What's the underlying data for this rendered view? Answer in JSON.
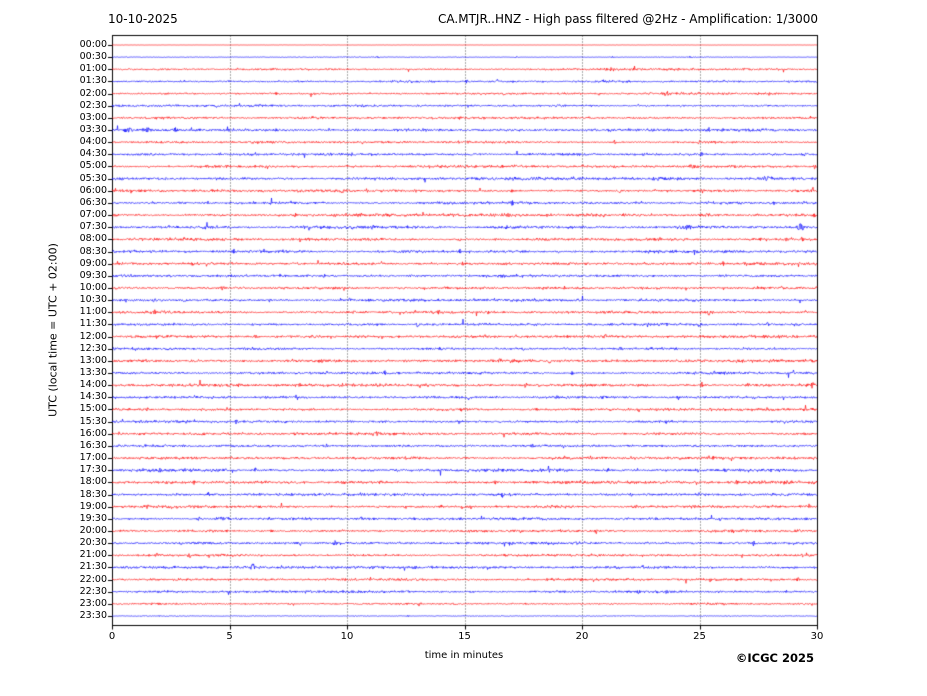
{
  "chart_data": {
    "type": "line",
    "subtype": "seismogram-helicorder",
    "title_left": "10-10-2025",
    "title_right": "CA.MTJR..HNZ - High pass filtered @2Hz - Amplification: 1/3000",
    "xlabel": "time in minutes",
    "ylabel": "UTC (local time = UTC + 02:00)",
    "credit": "©ICGC 2025",
    "xlim": [
      0,
      30
    ],
    "x_ticks": [
      0,
      5,
      10,
      15,
      20,
      25,
      30
    ],
    "grid_minutes": [
      5,
      10,
      15,
      20,
      25
    ],
    "grid_style": "dotted-vertical",
    "minutes_per_row": 30,
    "legend": "none",
    "colors": {
      "red": "#ff0000",
      "blue": "#0000ff",
      "axis": "#000000",
      "grid": "#555555"
    },
    "noise_seed": 20251010,
    "rows": [
      {
        "time": "00:00",
        "color": "red",
        "amp": 0.1,
        "spikes": []
      },
      {
        "time": "00:30",
        "color": "blue",
        "amp": 0.28,
        "spikes": [
          [
            11.3,
            1.2
          ],
          [
            17.2,
            0.9
          ],
          [
            21.3,
            1.0
          ],
          [
            24.6,
            1.0
          ]
        ]
      },
      {
        "time": "01:00",
        "color": "red",
        "amp": 0.75,
        "spikes": [
          [
            7.0,
            1.3
          ],
          [
            21.0,
            1.2
          ]
        ]
      },
      {
        "time": "01:30",
        "color": "blue",
        "amp": 0.85,
        "spikes": [
          [
            15.1,
            1.4
          ],
          [
            16.4,
            1.8
          ],
          [
            20.9,
            1.4
          ],
          [
            28.8,
            1.2
          ]
        ]
      },
      {
        "time": "02:00",
        "color": "red",
        "amp": 0.75,
        "spikes": [
          [
            7.0,
            1.8
          ],
          [
            16.7,
            1.4
          ],
          [
            23.6,
            1.6,
            0.25
          ]
        ]
      },
      {
        "time": "02:30",
        "color": "blue",
        "amp": 0.8,
        "spikes": [
          [
            22.4,
            1.5
          ],
          [
            24.2,
            1.6
          ]
        ]
      },
      {
        "time": "03:00",
        "color": "red",
        "amp": 0.85,
        "spikes": [
          [
            14.8,
            1.4
          ],
          [
            20.3,
            1.6
          ]
        ]
      },
      {
        "time": "03:30",
        "color": "blue",
        "amp": 0.95,
        "spikes": [
          [
            0.7,
            2.4,
            0.2
          ],
          [
            1.5,
            2.0,
            0.3
          ],
          [
            2.7,
            2.6
          ],
          [
            7.0,
            2.2
          ],
          [
            10.4,
            1.4
          ]
        ]
      },
      {
        "time": "04:00",
        "color": "red",
        "amp": 0.85,
        "spikes": [
          [
            3.0,
            1.4
          ],
          [
            21.4,
            2.2
          ],
          [
            25.0,
            1.4
          ]
        ]
      },
      {
        "time": "04:30",
        "color": "blue",
        "amp": 0.9,
        "spikes": [
          [
            1.7,
            1.6
          ],
          [
            4.6,
            1.4
          ],
          [
            10.2,
            2.4
          ],
          [
            17.8,
            1.3
          ],
          [
            25.1,
            2.6
          ]
        ]
      },
      {
        "time": "05:00",
        "color": "red",
        "amp": 1.05,
        "spikes": [
          [
            13.5,
            1.7
          ],
          [
            17.2,
            1.6
          ],
          [
            21.4,
            1.6
          ],
          [
            24.7,
            1.9,
            0.2
          ],
          [
            29.9,
            2.2
          ]
        ]
      },
      {
        "time": "05:30",
        "color": "blue",
        "amp": 1.1,
        "spikes": [
          [
            2.0,
            1.5
          ],
          [
            21.0,
            1.4
          ],
          [
            27.9,
            1.9,
            0.3
          ],
          [
            29.0,
            1.8
          ]
        ]
      },
      {
        "time": "06:00",
        "color": "red",
        "amp": 1.05,
        "spikes": [
          [
            0.8,
            2.3
          ],
          [
            9.8,
            1.9
          ],
          [
            17.0,
            1.5
          ],
          [
            21.6,
            1.6
          ],
          [
            23.1,
            1.5
          ],
          [
            29.8,
            2.8
          ]
        ]
      },
      {
        "time": "06:30",
        "color": "blue",
        "amp": 0.95,
        "spikes": [
          [
            6.5,
            1.4
          ],
          [
            17.0,
            2.2
          ],
          [
            25.6,
            1.5
          ]
        ]
      },
      {
        "time": "07:00",
        "color": "red",
        "amp": 1.0,
        "spikes": [
          [
            7.8,
            2.3
          ],
          [
            9.5,
            1.9
          ],
          [
            16.9,
            1.5
          ],
          [
            25.3,
            1.6,
            0.25
          ],
          [
            29.9,
            1.9
          ]
        ]
      },
      {
        "time": "07:30",
        "color": "blue",
        "amp": 1.05,
        "spikes": [
          [
            11.1,
            2.3
          ],
          [
            16.8,
            1.8
          ],
          [
            24.5,
            1.9,
            0.3
          ],
          [
            29.3,
            4.3,
            0.12
          ]
        ]
      },
      {
        "time": "08:00",
        "color": "red",
        "amp": 1.05,
        "spikes": [
          [
            3.0,
            1.7
          ],
          [
            14.8,
            2.3
          ],
          [
            27.6,
            1.6
          ],
          [
            28.7,
            2.7
          ],
          [
            29.4,
            2.6
          ]
        ]
      },
      {
        "time": "08:30",
        "color": "blue",
        "amp": 1.0,
        "spikes": [
          [
            5.2,
            2.3
          ],
          [
            8.0,
            1.9
          ],
          [
            14.8,
            2.4
          ],
          [
            24.8,
            2.0
          ]
        ]
      },
      {
        "time": "09:00",
        "color": "red",
        "amp": 1.05,
        "spikes": [
          [
            3.4,
            2.1
          ],
          [
            11.5,
            1.9
          ],
          [
            14.9,
            2.3
          ],
          [
            26.0,
            2.3
          ]
        ]
      },
      {
        "time": "09:30",
        "color": "blue",
        "amp": 0.95,
        "spikes": [
          [
            2.5,
            1.6
          ],
          [
            9.0,
            1.7
          ],
          [
            16.6,
            1.9
          ],
          [
            21.5,
            1.5
          ]
        ]
      },
      {
        "time": "10:00",
        "color": "red",
        "amp": 1.0,
        "spikes": [
          [
            4.7,
            2.4
          ],
          [
            13.3,
            1.7
          ],
          [
            22.8,
            1.9
          ],
          [
            28.5,
            1.5
          ]
        ]
      },
      {
        "time": "10:30",
        "color": "blue",
        "amp": 1.0,
        "spikes": [
          [
            0.6,
            1.7
          ],
          [
            1.8,
            1.9
          ],
          [
            3.1,
            1.5
          ],
          [
            6.7,
            1.9
          ],
          [
            10.1,
            2.1
          ],
          [
            28.1,
            1.5
          ]
        ]
      },
      {
        "time": "11:00",
        "color": "red",
        "amp": 1.0,
        "spikes": [
          [
            1.8,
            2.6
          ],
          [
            10.3,
            1.6
          ],
          [
            12.9,
            2.0
          ],
          [
            13.9,
            2.3
          ],
          [
            25.4,
            2.8
          ],
          [
            29.5,
            1.9
          ]
        ]
      },
      {
        "time": "11:30",
        "color": "blue",
        "amp": 1.0,
        "spikes": [
          [
            6.0,
            2.1
          ],
          [
            13.0,
            2.8
          ],
          [
            20.0,
            1.6
          ],
          [
            25.0,
            2.6
          ],
          [
            27.9,
            2.2
          ]
        ]
      },
      {
        "time": "12:00",
        "color": "red",
        "amp": 1.0,
        "spikes": [
          [
            6.1,
            1.9
          ],
          [
            9.3,
            1.9
          ],
          [
            12.2,
            2.3
          ],
          [
            17.2,
            1.7
          ],
          [
            21.0,
            1.9
          ]
        ]
      },
      {
        "time": "12:30",
        "color": "blue",
        "amp": 0.9,
        "spikes": [
          [
            6.0,
            1.7
          ],
          [
            14.0,
            1.7
          ],
          [
            17.5,
            1.5
          ],
          [
            21.6,
            1.4
          ]
        ]
      },
      {
        "time": "13:00",
        "color": "red",
        "amp": 1.1,
        "spikes": [
          [
            12.5,
            2.3
          ],
          [
            16.5,
            2.6
          ],
          [
            18.6,
            1.9
          ],
          [
            21.5,
            1.9
          ],
          [
            26.6,
            1.7
          ],
          [
            29.8,
            2.7
          ]
        ]
      },
      {
        "time": "13:30",
        "color": "blue",
        "amp": 1.0,
        "spikes": [
          [
            9.1,
            1.9
          ],
          [
            11.6,
            2.4
          ],
          [
            19.6,
            2.4
          ],
          [
            25.6,
            2.4
          ],
          [
            29.0,
            1.9
          ]
        ]
      },
      {
        "time": "14:00",
        "color": "red",
        "amp": 1.1,
        "spikes": [
          [
            8.0,
            1.9
          ],
          [
            13.0,
            1.9
          ],
          [
            17.6,
            2.1
          ],
          [
            25.1,
            2.8
          ],
          [
            27.1,
            1.9
          ],
          [
            29.8,
            3.2
          ]
        ]
      },
      {
        "time": "14:30",
        "color": "blue",
        "amp": 0.9,
        "spikes": [
          [
            15.2,
            2.4
          ],
          [
            24.1,
            1.9
          ]
        ]
      },
      {
        "time": "15:00",
        "color": "red",
        "amp": 0.9,
        "spikes": [
          [
            1.5,
            1.7
          ],
          [
            15.1,
            1.9
          ],
          [
            18.1,
            1.4
          ],
          [
            28.1,
            1.4
          ]
        ]
      },
      {
        "time": "15:30",
        "color": "blue",
        "amp": 0.9,
        "spikes": [
          [
            5.3,
            2.1
          ],
          [
            19.8,
            1.5
          ],
          [
            23.6,
            1.4
          ]
        ]
      },
      {
        "time": "16:00",
        "color": "red",
        "amp": 0.9,
        "spikes": [
          [
            0.3,
            1.9
          ],
          [
            11.3,
            1.9
          ],
          [
            24.9,
            2.3
          ]
        ]
      },
      {
        "time": "16:30",
        "color": "blue",
        "amp": 0.85,
        "spikes": [
          [
            9.1,
            1.5
          ],
          [
            17.9,
            2.6
          ],
          [
            23.4,
            1.5
          ]
        ]
      },
      {
        "time": "17:00",
        "color": "red",
        "amp": 0.95,
        "spikes": [
          [
            1.5,
            1.9
          ],
          [
            5.1,
            1.7
          ],
          [
            20.4,
            1.6
          ],
          [
            25.6,
            1.9
          ]
        ]
      },
      {
        "time": "17:30",
        "color": "blue",
        "amp": 1.25,
        "spikes": [
          [
            2.1,
            2.4
          ],
          [
            6.1,
            1.9
          ],
          [
            12.1,
            1.9
          ],
          [
            18.6,
            2.3
          ],
          [
            21.1,
            2.1
          ],
          [
            26.1,
            1.9
          ]
        ]
      },
      {
        "time": "18:00",
        "color": "red",
        "amp": 1.15,
        "spikes": [
          [
            3.5,
            2.1
          ],
          [
            11.4,
            2.8
          ],
          [
            16.3,
            2.3
          ],
          [
            26.6,
            1.9
          ]
        ]
      },
      {
        "time": "18:30",
        "color": "blue",
        "amp": 1.05,
        "spikes": [
          [
            4.1,
            2.4
          ],
          [
            16.6,
            2.4
          ],
          [
            22.1,
            1.9
          ]
        ]
      },
      {
        "time": "19:00",
        "color": "red",
        "amp": 1.05,
        "spikes": [
          [
            1.5,
            2.4
          ],
          [
            12.5,
            1.9
          ],
          [
            22.3,
            2.8
          ]
        ]
      },
      {
        "time": "19:30",
        "color": "blue",
        "amp": 0.95,
        "spikes": [
          [
            3.7,
            1.9
          ],
          [
            4.7,
            1.6,
            0.3
          ],
          [
            10.6,
            1.9
          ],
          [
            25.9,
            2.3
          ]
        ]
      },
      {
        "time": "20:00",
        "color": "red",
        "amp": 0.9,
        "spikes": [
          [
            4.9,
            2.3
          ],
          [
            6.8,
            2.1
          ],
          [
            20.6,
            1.9
          ]
        ]
      },
      {
        "time": "20:30",
        "color": "blue",
        "amp": 1.0,
        "spikes": [
          [
            8.0,
            2.2
          ],
          [
            9.5,
            2.6
          ],
          [
            27.3,
            2.5
          ]
        ]
      },
      {
        "time": "21:00",
        "color": "red",
        "amp": 0.9,
        "spikes": [
          [
            1.9,
            2.6
          ],
          [
            3.3,
            1.7
          ],
          [
            29.4,
            1.9
          ]
        ]
      },
      {
        "time": "21:30",
        "color": "blue",
        "amp": 1.0,
        "spikes": [
          [
            6.0,
            3.8,
            0.1
          ],
          [
            11.1,
            1.9
          ],
          [
            12.9,
            1.7
          ],
          [
            22.6,
            2.3
          ]
        ]
      },
      {
        "time": "22:00",
        "color": "red",
        "amp": 0.9,
        "spikes": [
          [
            12.3,
            1.7
          ],
          [
            29.2,
            2.3
          ]
        ]
      },
      {
        "time": "22:30",
        "color": "blue",
        "amp": 0.9,
        "spikes": [
          [
            12.6,
            1.9
          ],
          [
            22.4,
            2.1
          ],
          [
            23.6,
            1.9
          ]
        ]
      },
      {
        "time": "23:00",
        "color": "red",
        "amp": 0.75,
        "spikes": [
          [
            2.0,
            1.4
          ],
          [
            17.6,
            1.3
          ]
        ]
      },
      {
        "time": "23:30",
        "color": "blue",
        "amp": 0.3,
        "spikes": [
          [
            12.6,
            1.0
          ]
        ]
      }
    ]
  }
}
